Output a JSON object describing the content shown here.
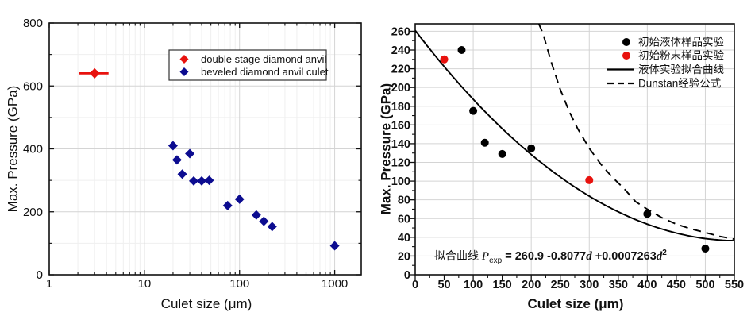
{
  "figure": {
    "background": "#ffffff",
    "colors": {
      "frame": "#111111",
      "grid": "#d4d4d4",
      "grid_minor": "#efefef",
      "blue": "#0c0c90",
      "red": "#e8120e",
      "black": "#000000"
    }
  },
  "chart_data": [
    {
      "type": "scatter",
      "title": "",
      "xlabel": "Culet size (μm)",
      "ylabel": "Max. Pressure (GPa)",
      "xscale": "log",
      "xlim": [
        1,
        1900
      ],
      "ylim": [
        0,
        800
      ],
      "xticks": [
        1,
        10,
        100,
        1000
      ],
      "yticks": [
        0,
        200,
        400,
        600,
        800
      ],
      "x_minor": "log",
      "y_minor_step": 100,
      "x_grid": [
        10,
        100,
        1000
      ],
      "y_grid": [
        200,
        400,
        600
      ],
      "x_minor_grid": true,
      "y_minor_grid": true,
      "grid": true,
      "legend_position": "upper right",
      "legend": {
        "box": true,
        "items": [
          {
            "marker": "diamond",
            "color": "#e8120e",
            "label": "double stage diamond anvil"
          },
          {
            "marker": "diamond",
            "color": "#0c0c90",
            "label": "beveled diamond anvil culet"
          }
        ]
      },
      "series": [
        {
          "name": "double stage diamond anvil",
          "marker": "diamond",
          "color": "#e8120e",
          "size": 6.5,
          "points": [
            [
              3,
              640
            ]
          ],
          "xerr": [
            [
              2.05,
              4.2
            ]
          ]
        },
        {
          "name": "beveled diamond anvil culet",
          "marker": "diamond",
          "color": "#0c0c90",
          "size": 6,
          "points": [
            [
              20,
              410
            ],
            [
              22,
              365
            ],
            [
              25,
              320
            ],
            [
              30,
              385
            ],
            [
              33,
              298
            ],
            [
              40,
              298
            ],
            [
              48,
              300
            ],
            [
              75,
              220
            ],
            [
              100,
              240
            ],
            [
              150,
              190
            ],
            [
              180,
              170
            ],
            [
              220,
              153
            ],
            [
              1000,
              92
            ]
          ]
        }
      ]
    },
    {
      "type": "scatter",
      "title": "",
      "xlabel": "Culet size (μm)",
      "ylabel": "Max. Pressure (GPa)",
      "xscale": "linear",
      "xlim": [
        0,
        550
      ],
      "ylim": [
        0,
        268
      ],
      "xticks": [
        0,
        50,
        100,
        150,
        200,
        250,
        300,
        350,
        400,
        450,
        500,
        550
      ],
      "yticks": [
        0,
        20,
        40,
        60,
        80,
        100,
        120,
        140,
        160,
        180,
        200,
        220,
        240,
        260
      ],
      "x_minor_step": 25,
      "y_minor_step": 10,
      "x_grid": [
        100,
        200,
        300,
        400,
        500
      ],
      "y_grid": [
        20,
        40,
        60,
        80,
        100,
        120,
        140,
        160,
        180,
        200,
        220,
        240,
        260
      ],
      "grid": true,
      "legend_position": "upper right",
      "legend": {
        "box": false,
        "items": [
          {
            "marker": "circle",
            "color": "#000000",
            "label": "初始液体样品实验"
          },
          {
            "marker": "circle",
            "color": "#e8120e",
            "label": "初始粉末样品实验"
          },
          {
            "line": "solid",
            "color": "#000000",
            "label": "液体实验拟合曲线"
          },
          {
            "line": "dashed",
            "color": "#000000",
            "label": "Dunstan经验公式"
          }
        ]
      },
      "series": [
        {
          "name": "初始液体样品实验",
          "marker": "circle",
          "color": "#000000",
          "size": 5,
          "points": [
            [
              80,
              240
            ],
            [
              100,
              175
            ],
            [
              120,
              141
            ],
            [
              150,
              129
            ],
            [
              200,
              135
            ],
            [
              400,
              65
            ],
            [
              500,
              28
            ]
          ]
        },
        {
          "name": "初始粉末样品实验",
          "marker": "circle",
          "color": "#e8120e",
          "size": 5,
          "points": [
            [
              50,
              230
            ],
            [
              300,
              101
            ]
          ]
        }
      ],
      "curves": [
        {
          "name": "液体实验拟合曲线",
          "style": "solid",
          "color": "#000000",
          "formula": "P_exp = 260.9 - 0.8077d + 0.0007263d^2",
          "coeffs": [
            260.9,
            -0.8077,
            0.0007263
          ],
          "domain": [
            0,
            550
          ]
        },
        {
          "name": "Dunstan经验公式",
          "style": "dashed",
          "color": "#000000",
          "points": [
            [
              213,
              268
            ],
            [
              220,
              258
            ],
            [
              235,
              226
            ],
            [
              250,
              198
            ],
            [
              265,
              175
            ],
            [
              280,
              156
            ],
            [
              300,
              135
            ],
            [
              320,
              118
            ],
            [
              340,
              104
            ],
            [
              360,
              92
            ],
            [
              380,
              78
            ],
            [
              400,
              70
            ],
            [
              425,
              61
            ],
            [
              450,
              54
            ],
            [
              475,
              49
            ],
            [
              500,
              45
            ],
            [
              525,
              41
            ],
            [
              550,
              38
            ]
          ]
        }
      ],
      "annotation": {
        "plain": "拟合曲线 P_exp = 260.9 -0.8077d +0.0007263d²",
        "segments": [
          {
            "t": "拟合曲线 ",
            "f": "cn"
          },
          {
            "t": "P",
            "f": "var"
          },
          {
            "t": "exp",
            "f": "sub"
          },
          {
            "t": " = 260.9 -0.8077",
            "f": "num"
          },
          {
            "t": "d",
            "f": "vard"
          },
          {
            "t": " +0.0007263",
            "f": "num"
          },
          {
            "t": "d",
            "f": "vard"
          },
          {
            "t": "2",
            "f": "sup"
          }
        ]
      }
    }
  ]
}
